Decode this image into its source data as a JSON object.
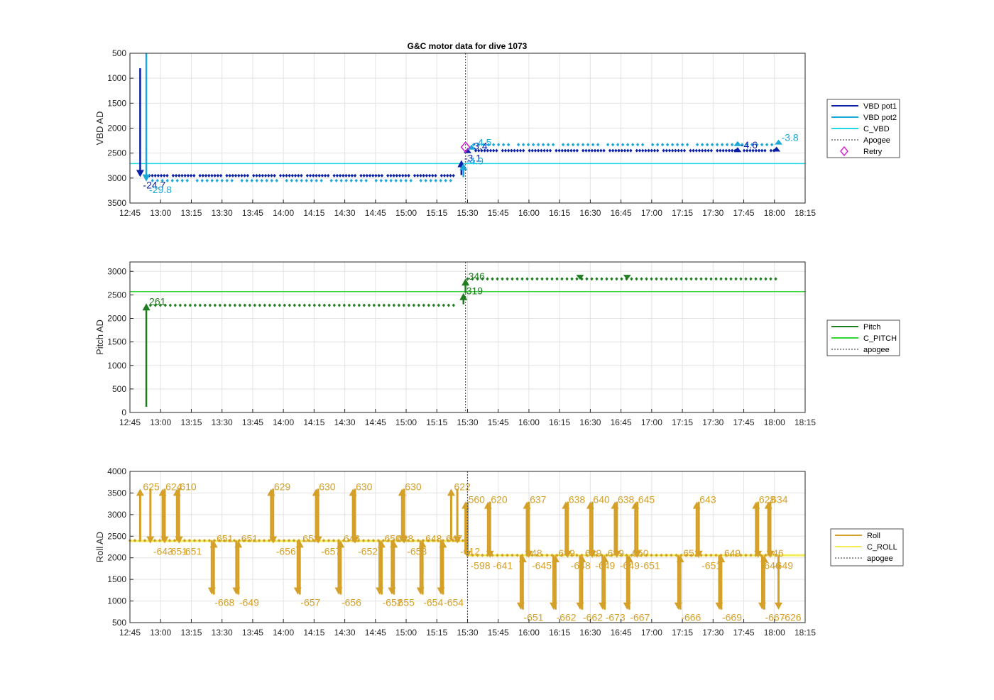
{
  "figure_title": "G&C motor data for dive 1073",
  "colors": {
    "vbd_pot1": "#0a1fa8",
    "vbd_pot2": "#1ca8d8",
    "c_vbd": "#22d8e6",
    "retry": "#d21fd0",
    "pitch": "#1e7d1e",
    "c_pitch": "#33d433",
    "roll": "#d4a028",
    "c_roll": "#f2ee5a",
    "apogee": "#555555"
  },
  "chart_data": [
    {
      "type": "scatter",
      "title": "G&C motor data for dive 1073",
      "ylabel": "VBD AD",
      "xlabel": "",
      "x_ticks": [
        "12:45",
        "13:00",
        "13:15",
        "13:30",
        "13:45",
        "14:00",
        "14:15",
        "14:30",
        "14:45",
        "15:00",
        "15:15",
        "15:30",
        "15:45",
        "16:00",
        "16:15",
        "16:30",
        "16:45",
        "17:00",
        "17:15",
        "17:30",
        "17:45",
        "18:00",
        "18:15"
      ],
      "xlim": [
        "12:45",
        "18:15"
      ],
      "y_ticks": [
        500,
        1000,
        1500,
        2000,
        2500,
        3000,
        3500
      ],
      "ylim": [
        500,
        3500
      ],
      "y_reversed": true,
      "grid": true,
      "legend_position": "outside-right",
      "legend": [
        "VBD pot1",
        "VBD pot2",
        "C_VBD",
        "Apogee",
        "Retry"
      ],
      "apogee_time": "15:29",
      "c_vbd": 2710,
      "series": [
        {
          "name": "VBD pot1",
          "description": "dive segment",
          "x_start": "12:53",
          "x_end": "15:24",
          "y": 2950
        },
        {
          "name": "VBD pot1",
          "description": "climb segment",
          "x_start": "15:34",
          "x_end": "18:00",
          "y": 2450
        },
        {
          "name": "VBD pot2",
          "description": "dive segment",
          "x_start": "12:56",
          "x_end": "15:24",
          "y": 3050
        },
        {
          "name": "VBD pot2",
          "description": "climb segment",
          "x_start": "15:33",
          "x_end": "18:00",
          "y": 2330
        }
      ],
      "arrows": [
        {
          "series": "VBD pot1",
          "x": "12:50",
          "y_from": 800,
          "y_to": 2980,
          "label": "-24.7"
        },
        {
          "series": "VBD pot2",
          "x": "12:53",
          "y_from": 500,
          "y_to": 3070,
          "label": "-29.8"
        },
        {
          "series": "VBD pot1",
          "x": "15:27",
          "y_from": 2940,
          "y_to": 2640,
          "label": "-3.1"
        },
        {
          "series": "VBD pot2",
          "x": "15:28",
          "y_from": 2980,
          "y_to": 2700,
          "label": "-4.9"
        },
        {
          "series": "VBD pot1",
          "x": "15:30",
          "y_from": 2470,
          "y_to": 2400,
          "label": "-3.4"
        },
        {
          "series": "VBD pot2",
          "x": "15:32",
          "y_from": 2370,
          "y_to": 2330,
          "label": "-4.5"
        },
        {
          "series": "VBD pot1",
          "x": "17:42",
          "y_from": 2420,
          "y_to": 2380,
          "label": "-4.6"
        },
        {
          "series": "VBD pot2",
          "x": "17:42",
          "y_from": 2300,
          "y_to": 2260,
          "label": ""
        },
        {
          "series": "VBD pot1",
          "x": "18:01",
          "y_from": 2420,
          "y_to": 2370,
          "label": ""
        },
        {
          "series": "VBD pot2",
          "x": "18:02",
          "y_from": 2270,
          "y_to": 2230,
          "label": "-3.8"
        }
      ],
      "retry_points": [
        {
          "x": "15:29",
          "y": 2380
        }
      ]
    },
    {
      "type": "scatter",
      "title": "",
      "ylabel": "Pitch AD",
      "xlabel": "",
      "x_ticks": [
        "12:45",
        "13:00",
        "13:15",
        "13:30",
        "13:45",
        "14:00",
        "14:15",
        "14:30",
        "14:45",
        "15:00",
        "15:15",
        "15:30",
        "15:45",
        "16:00",
        "16:15",
        "16:30",
        "16:45",
        "17:00",
        "17:15",
        "17:30",
        "17:45",
        "18:00",
        "18:15"
      ],
      "xlim": [
        "12:45",
        "18:15"
      ],
      "y_ticks": [
        0,
        500,
        1000,
        1500,
        2000,
        2500,
        3000
      ],
      "ylim": [
        0,
        3200
      ],
      "grid": true,
      "legend_position": "outside-right",
      "legend": [
        "Pitch",
        "C_PITCH",
        "apogee"
      ],
      "apogee_time": "15:29",
      "c_pitch": 2570,
      "series": [
        {
          "name": "Pitch",
          "description": "dive segment",
          "x_start": "12:55",
          "x_end": "15:24",
          "y": 2280
        },
        {
          "name": "Pitch",
          "description": "climb segment",
          "x_start": "15:30",
          "x_end": "18:02",
          "y": 2840
        }
      ],
      "arrows": [
        {
          "series": "Pitch",
          "x": "12:53",
          "y_from": 120,
          "y_to": 2320,
          "label": "261"
        },
        {
          "series": "Pitch",
          "x": "15:28",
          "y_from": 2300,
          "y_to": 2540,
          "label": "319"
        },
        {
          "series": "Pitch",
          "x": "15:29",
          "y_from": 2540,
          "y_to": 2850,
          "label": "346"
        },
        {
          "series": "Pitch",
          "x": "16:25",
          "y_from": 2860,
          "y_to": 2820,
          "label": ""
        },
        {
          "series": "Pitch",
          "x": "16:48",
          "y_from": 2860,
          "y_to": 2820,
          "label": ""
        }
      ]
    },
    {
      "type": "scatter",
      "title": "",
      "ylabel": "Roll AD",
      "xlabel": "",
      "x_ticks": [
        "12:45",
        "13:00",
        "13:15",
        "13:30",
        "13:45",
        "14:00",
        "14:15",
        "14:30",
        "14:45",
        "15:00",
        "15:15",
        "15:30",
        "15:45",
        "16:00",
        "16:15",
        "16:30",
        "16:45",
        "17:00",
        "17:15",
        "17:30",
        "17:45",
        "18:00",
        "18:15"
      ],
      "xlim": [
        "12:45",
        "18:15"
      ],
      "y_ticks": [
        500,
        1000,
        1500,
        2000,
        2500,
        3000,
        3500,
        4000
      ],
      "ylim": [
        500,
        4000
      ],
      "grid": true,
      "legend_position": "outside-right",
      "legend": [
        "Roll",
        "C_ROLL",
        "apogee"
      ],
      "apogee_time": "15:30",
      "c_roll_dive": 2390,
      "c_roll_climb": 2060,
      "series": [
        {
          "name": "Roll",
          "description": "dive segment",
          "x_start": "12:45",
          "x_end": "15:28",
          "y": 2400
        },
        {
          "name": "Roll",
          "description": "climb segment",
          "x_start": "15:30",
          "x_end": "18:02",
          "y": 2060
        }
      ],
      "arrows": [
        {
          "x": "12:50",
          "y_from": 2400,
          "y_to": 3600,
          "label": "625"
        },
        {
          "x": "12:55",
          "y_from": 3600,
          "y_to": 2330,
          "label": "-643"
        },
        {
          "x": "13:01",
          "y_from": 2400,
          "y_to": 3600,
          "label": "624"
        },
        {
          "x": "13:02",
          "y_from": 3600,
          "y_to": 2330,
          "label": "-651"
        },
        {
          "x": "13:08",
          "y_from": 2400,
          "y_to": 3600,
          "label": "610"
        },
        {
          "x": "13:09",
          "y_from": 3600,
          "y_to": 2330,
          "label": "-651"
        },
        {
          "x": "13:25",
          "y_from": 2400,
          "y_to": 1150,
          "label": "-668"
        },
        {
          "x": "13:26",
          "y_from": 1150,
          "y_to": 2400,
          "label": "651"
        },
        {
          "x": "13:37",
          "y_from": 2400,
          "y_to": 1150,
          "label": "-649"
        },
        {
          "x": "13:38",
          "y_from": 1150,
          "y_to": 2400,
          "label": "651"
        },
        {
          "x": "13:54",
          "y_from": 2400,
          "y_to": 3600,
          "label": "629"
        },
        {
          "x": "13:55",
          "y_from": 3600,
          "y_to": 2330,
          "label": "-656"
        },
        {
          "x": "14:07",
          "y_from": 2400,
          "y_to": 1150,
          "label": "-657"
        },
        {
          "x": "14:08",
          "y_from": 1150,
          "y_to": 2400,
          "label": "652"
        },
        {
          "x": "14:16",
          "y_from": 2400,
          "y_to": 3600,
          "label": "630"
        },
        {
          "x": "14:17",
          "y_from": 3600,
          "y_to": 2330,
          "label": "-657"
        },
        {
          "x": "14:27",
          "y_from": 2400,
          "y_to": 1150,
          "label": "-656"
        },
        {
          "x": "14:28",
          "y_from": 1150,
          "y_to": 2400,
          "label": "646"
        },
        {
          "x": "14:34",
          "y_from": 2400,
          "y_to": 3600,
          "label": "630"
        },
        {
          "x": "14:35",
          "y_from": 3600,
          "y_to": 2330,
          "label": "-652"
        },
        {
          "x": "14:47",
          "y_from": 2400,
          "y_to": 1150,
          "label": "-652"
        },
        {
          "x": "14:48",
          "y_from": 1150,
          "y_to": 2400,
          "label": "650"
        },
        {
          "x": "14:53",
          "y_from": 2400,
          "y_to": 1150,
          "label": "-655"
        },
        {
          "x": "14:54",
          "y_from": 1150,
          "y_to": 2400,
          "label": "648"
        },
        {
          "x": "14:58",
          "y_from": 2400,
          "y_to": 3600,
          "label": "630"
        },
        {
          "x": "14:59",
          "y_from": 3600,
          "y_to": 2330,
          "label": "-653"
        },
        {
          "x": "15:07",
          "y_from": 2400,
          "y_to": 1150,
          "label": "-654"
        },
        {
          "x": "15:08",
          "y_from": 1150,
          "y_to": 2400,
          "label": "648"
        },
        {
          "x": "15:17",
          "y_from": 2400,
          "y_to": 1150,
          "label": "-654"
        },
        {
          "x": "15:18",
          "y_from": 1150,
          "y_to": 2400,
          "label": "647"
        },
        {
          "x": "15:22",
          "y_from": 2400,
          "y_to": 3600,
          "label": "622"
        },
        {
          "x": "15:25",
          "y_from": 3600,
          "y_to": 2330,
          "label": "-612"
        },
        {
          "x": "15:29",
          "y_from": 2100,
          "y_to": 3300,
          "label": "560"
        },
        {
          "x": "15:30",
          "y_from": 3300,
          "y_to": 2000,
          "label": "-598"
        },
        {
          "x": "15:40",
          "y_from": 2060,
          "y_to": 3300,
          "label": "620"
        },
        {
          "x": "15:41",
          "y_from": 3300,
          "y_to": 2000,
          "label": "-641"
        },
        {
          "x": "15:56",
          "y_from": 2060,
          "y_to": 800,
          "label": "-651"
        },
        {
          "x": "15:57",
          "y_from": 800,
          "y_to": 2060,
          "label": "648"
        },
        {
          "x": "15:59",
          "y_from": 2060,
          "y_to": 3300,
          "label": "637"
        },
        {
          "x": "16:00",
          "y_from": 3300,
          "y_to": 2000,
          "label": "-645"
        },
        {
          "x": "16:12",
          "y_from": 2060,
          "y_to": 800,
          "label": "-662"
        },
        {
          "x": "16:13",
          "y_from": 800,
          "y_to": 2060,
          "label": "649"
        },
        {
          "x": "16:18",
          "y_from": 2060,
          "y_to": 3300,
          "label": "638"
        },
        {
          "x": "16:19",
          "y_from": 3300,
          "y_to": 2000,
          "label": "-648"
        },
        {
          "x": "16:25",
          "y_from": 2060,
          "y_to": 800,
          "label": "-662"
        },
        {
          "x": "16:26",
          "y_from": 800,
          "y_to": 2060,
          "label": "649"
        },
        {
          "x": "16:30",
          "y_from": 2060,
          "y_to": 3300,
          "label": "640"
        },
        {
          "x": "16:31",
          "y_from": 3300,
          "y_to": 2000,
          "label": "-649"
        },
        {
          "x": "16:36",
          "y_from": 2060,
          "y_to": 800,
          "label": "-673"
        },
        {
          "x": "16:37",
          "y_from": 800,
          "y_to": 2060,
          "label": "649"
        },
        {
          "x": "16:42",
          "y_from": 2060,
          "y_to": 3300,
          "label": "638"
        },
        {
          "x": "16:43",
          "y_from": 3300,
          "y_to": 2000,
          "label": "-649"
        },
        {
          "x": "16:48",
          "y_from": 2060,
          "y_to": 800,
          "label": "-667"
        },
        {
          "x": "16:49",
          "y_from": 800,
          "y_to": 2060,
          "label": "650"
        },
        {
          "x": "16:52",
          "y_from": 2060,
          "y_to": 3300,
          "label": "645"
        },
        {
          "x": "16:53",
          "y_from": 3300,
          "y_to": 2000,
          "label": "-651"
        },
        {
          "x": "17:13",
          "y_from": 2060,
          "y_to": 800,
          "label": "-666"
        },
        {
          "x": "17:14",
          "y_from": 800,
          "y_to": 2060,
          "label": "651"
        },
        {
          "x": "17:22",
          "y_from": 2060,
          "y_to": 3300,
          "label": "643"
        },
        {
          "x": "17:23",
          "y_from": 3300,
          "y_to": 2000,
          "label": "-651"
        },
        {
          "x": "17:33",
          "y_from": 2060,
          "y_to": 800,
          "label": "-669"
        },
        {
          "x": "17:34",
          "y_from": 800,
          "y_to": 2060,
          "label": "649"
        },
        {
          "x": "17:51",
          "y_from": 2060,
          "y_to": 3300,
          "label": "628"
        },
        {
          "x": "17:52",
          "y_from": 3300,
          "y_to": 2000,
          "label": "-646"
        },
        {
          "x": "17:54",
          "y_from": 2060,
          "y_to": 800,
          "label": "-667"
        },
        {
          "x": "17:55",
          "y_from": 800,
          "y_to": 2060,
          "label": "646"
        },
        {
          "x": "17:57",
          "y_from": 2060,
          "y_to": 3300,
          "label": "634"
        },
        {
          "x": "17:58",
          "y_from": 3300,
          "y_to": 2000,
          "label": "-649"
        },
        {
          "x": "18:02",
          "y_from": 2060,
          "y_to": 800,
          "label": "-626"
        }
      ]
    }
  ]
}
